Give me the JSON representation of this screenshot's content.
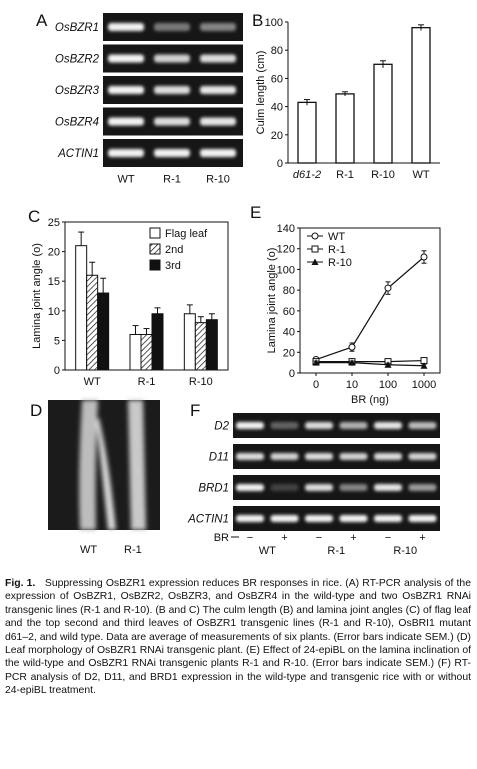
{
  "panels": {
    "A": {
      "label": "A",
      "genes": [
        "OsBZR1",
        "OsBZR2",
        "OsBZR3",
        "OsBZR4",
        "ACTIN1"
      ],
      "lanes": [
        "WT",
        "R-1",
        "R-10"
      ],
      "band_intensity": [
        [
          1.0,
          0.45,
          0.5
        ],
        [
          1.0,
          0.85,
          0.9
        ],
        [
          1.0,
          0.9,
          0.95
        ],
        [
          1.0,
          0.9,
          0.95
        ],
        [
          1.0,
          1.0,
          1.0
        ]
      ]
    },
    "F": {
      "label": "F",
      "genes": [
        "D2",
        "D11",
        "BRD1",
        "ACTIN1"
      ],
      "groups": [
        "WT",
        "R-1",
        "R-10"
      ],
      "treatment_row_label": "BR",
      "treatment_signs": [
        "−",
        "+",
        "−",
        "+",
        "−",
        "+"
      ],
      "band_intensity": [
        [
          1.0,
          0.35,
          0.9,
          0.7,
          0.95,
          0.75
        ],
        [
          0.9,
          0.85,
          0.9,
          0.85,
          0.9,
          0.85
        ],
        [
          1.0,
          0.2,
          0.9,
          0.5,
          0.95,
          0.6
        ],
        [
          1.0,
          1.0,
          1.0,
          1.0,
          1.0,
          1.0
        ]
      ]
    },
    "D": {
      "label": "D",
      "lanes": [
        "WT",
        "R-1"
      ]
    }
  },
  "chart_data": [
    {
      "panel": "B",
      "type": "bar",
      "ylabel": "Culm length (cm)",
      "categories": [
        "d61-2",
        "R-1",
        "R-10",
        "WT"
      ],
      "values": [
        43,
        49,
        70,
        96
      ],
      "errors": [
        2,
        1.5,
        2.5,
        2
      ],
      "ylim": [
        0,
        100
      ],
      "yticks": [
        0,
        20,
        40,
        60,
        80,
        100
      ],
      "grid": false
    },
    {
      "panel": "C",
      "type": "bar",
      "ylabel": "Lamina joint angle (o)",
      "categories": [
        "WT",
        "R-1",
        "R-10"
      ],
      "series": [
        {
          "name": "Flag leaf",
          "values": [
            21,
            6,
            9.5
          ],
          "errors": [
            2.3,
            1.5,
            1.5
          ]
        },
        {
          "name": "2nd",
          "values": [
            16,
            6,
            8
          ],
          "errors": [
            2.2,
            1,
            1
          ]
        },
        {
          "name": "3rd",
          "values": [
            13,
            9.5,
            8.5
          ],
          "errors": [
            2.5,
            1,
            1
          ]
        }
      ],
      "ylim": [
        0,
        25
      ],
      "yticks": [
        0,
        5,
        10,
        15,
        20,
        25
      ],
      "legend": "top-right",
      "grid": false
    },
    {
      "panel": "E",
      "type": "line",
      "ylabel": "Lamina joint angle (o)",
      "xlabel": "BR (ng)",
      "x": [
        "0",
        "10",
        "100",
        "1000"
      ],
      "series": [
        {
          "name": "WT",
          "marker": "circle",
          "values": [
            13,
            25,
            82,
            112
          ],
          "errors": [
            2,
            4,
            6,
            6
          ]
        },
        {
          "name": "R-1",
          "marker": "square",
          "values": [
            11,
            11,
            11,
            12
          ],
          "errors": [
            1.5,
            1.5,
            1.5,
            1.5
          ]
        },
        {
          "name": "R-10",
          "marker": "triangle",
          "values": [
            10,
            10,
            8,
            7
          ],
          "errors": [
            1.5,
            1.5,
            1.5,
            1.5
          ]
        }
      ],
      "ylim": [
        0,
        140
      ],
      "yticks": [
        0,
        20,
        40,
        60,
        80,
        100,
        120,
        140
      ],
      "legend": "top-left",
      "grid": false
    }
  ],
  "caption": {
    "fig": "Fig. 1.",
    "text": "Suppressing OsBZR1 expression reduces BR responses in rice. (A) RT-PCR analysis of the expression of OsBZR1, OsBZR2, OsBZR3, and OsBZR4 in the wild-type and two OsBZR1 RNAi transgenic lines (R-1 and R-10). (B and C) The culm length (B) and lamina joint angles (C) of flag leaf and the top second and third leaves of OsBZR1 transgenic lines (R-1 and R-10), OsBRI1 mutant d61–2, and wild type. Data are average of measurements of six plants. (Error bars indicate SEM.) (D) Leaf morphology of OsBZR1 RNAi transgenic plant. (E) Effect of 24-epiBL on the lamina inclination of the wild-type and OsBZR1 RNAi transgenic plants R-1 and R-10. (Error bars indicate SEM.) (F) RT-PCR analysis of D2, D11, and BRD1 expression in the wild-type and transgenic rice with or without 24-epiBL treatment."
  },
  "colors": {
    "gel_bg": "#161616",
    "band": "#f2f2f2",
    "photo_bg": "#1b1b1b",
    "leaf": "#d8d8d8",
    "bar_black": "#111111"
  }
}
